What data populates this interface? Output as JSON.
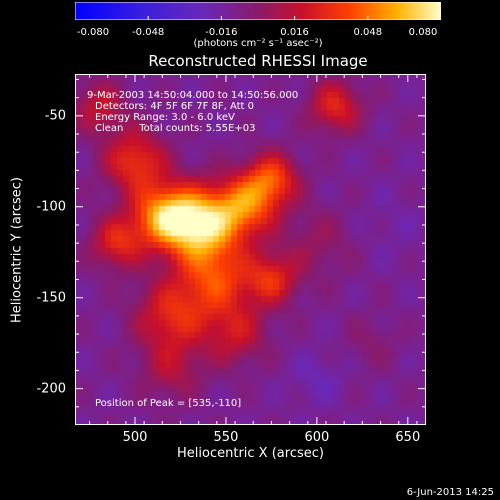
{
  "chart_data": {
    "type": "heatmap",
    "title": "Reconstructed RHESSI Image",
    "xlabel": "Heliocentric X (arcsec)",
    "ylabel": "Heliocentric Y (arcsec)",
    "xlim": [
      467,
      660
    ],
    "ylim": [
      -220,
      -27
    ],
    "x_ticks": [
      500,
      550,
      600,
      650
    ],
    "y_ticks": [
      -50,
      -100,
      -150,
      -200
    ],
    "colorbar": {
      "range": [
        -0.08,
        0.08
      ],
      "ticks": [
        "-0.080",
        "-0.048",
        "-0.016",
        "0.016",
        "0.048",
        "0.080"
      ],
      "unit_label": "(photons cm⁻² s⁻¹ asec⁻²)"
    },
    "annotations": {
      "time": "9-Mar-2003 14:50:04.000 to 14:50:56.000",
      "detectors": "Detectors: 4F 5F 6F 7F 8F, Att 0",
      "energy": "Energy Range: 3.0 - 6.0 keV",
      "clean": "Clean     Total counts: 5.55E+03",
      "peak": "Position of Peak = [535,-110]"
    },
    "peak_position": [
      535,
      -110
    ],
    "sources": [
      {
        "x": 535,
        "y": -110,
        "value": 0.08,
        "sigma": 14
      },
      {
        "x": 515,
        "y": -105,
        "value": 0.06,
        "sigma": 12
      },
      {
        "x": 560,
        "y": -100,
        "value": 0.055,
        "sigma": 12
      },
      {
        "x": 575,
        "y": -85,
        "value": 0.05,
        "sigma": 10
      },
      {
        "x": 500,
        "y": -75,
        "value": 0.045,
        "sigma": 12
      },
      {
        "x": 490,
        "y": -120,
        "value": 0.04,
        "sigma": 10
      },
      {
        "x": 545,
        "y": -140,
        "value": 0.045,
        "sigma": 14
      },
      {
        "x": 575,
        "y": -140,
        "value": 0.04,
        "sigma": 10
      },
      {
        "x": 520,
        "y": -160,
        "value": 0.04,
        "sigma": 14
      },
      {
        "x": 555,
        "y": -170,
        "value": 0.03,
        "sigma": 12
      },
      {
        "x": 520,
        "y": -190,
        "value": 0.022,
        "sigma": 12
      },
      {
        "x": 610,
        "y": -45,
        "value": 0.04,
        "sigma": 10
      },
      {
        "x": 480,
        "y": -45,
        "value": 0.03,
        "sigma": 10
      },
      {
        "x": 600,
        "y": -120,
        "value": 0.015,
        "sigma": 14
      },
      {
        "x": 630,
        "y": -175,
        "value": 0.01,
        "sigma": 10
      },
      {
        "x": 600,
        "y": -195,
        "value": -0.01,
        "sigma": 10
      },
      {
        "x": 640,
        "y": -110,
        "value": -0.005,
        "sigma": 14
      }
    ],
    "background": -0.012,
    "footer_date": "6-Jun-2013 14:25"
  }
}
